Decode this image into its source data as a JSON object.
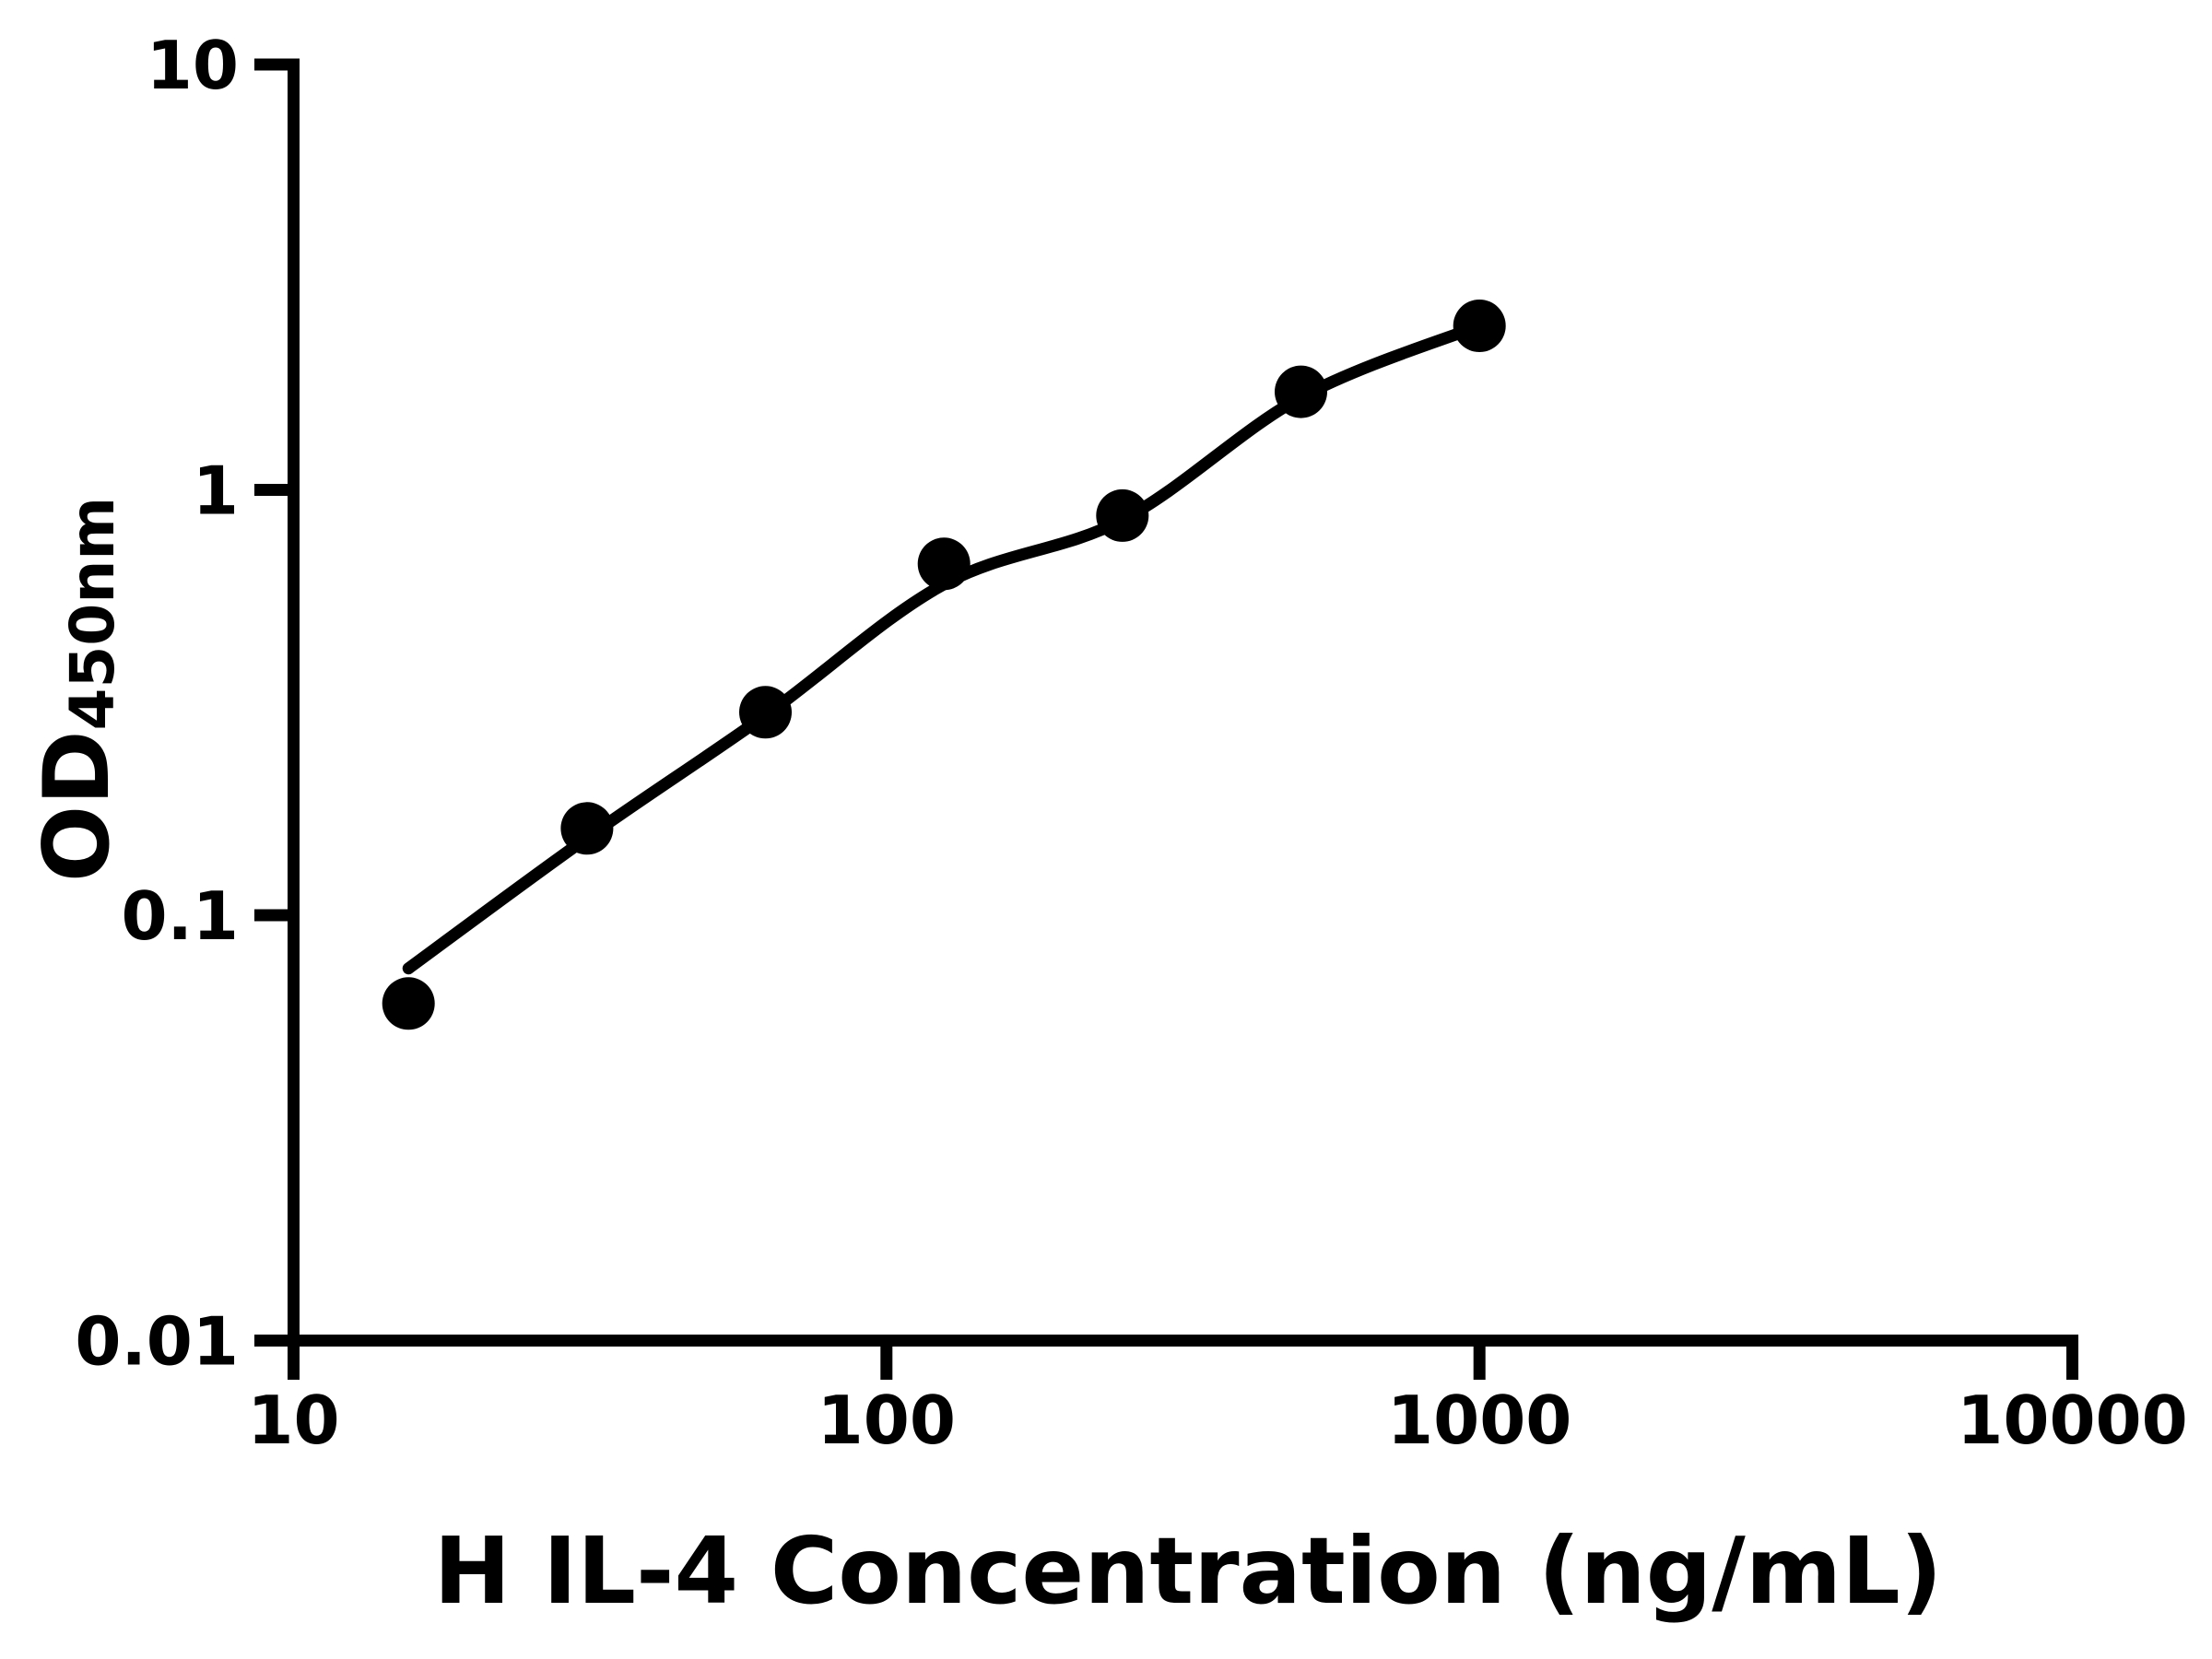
{
  "figure": {
    "background": "#ffffff",
    "foreground": "#000000"
  },
  "chart_data": {
    "type": "scatter",
    "title": "",
    "xlabel": "H IL-4 Concentration (ng/mL)",
    "ylabel_main": "OD",
    "ylabel_sub": "450nm",
    "xscale": "log",
    "yscale": "log",
    "xlim": [
      10,
      10000
    ],
    "ylim": [
      0.01,
      10
    ],
    "x_ticks": [
      10,
      100,
      1000,
      10000
    ],
    "x_tick_labels": [
      "10",
      "100",
      "1000",
      "10000"
    ],
    "y_ticks": [
      10,
      1,
      0.1,
      0.01
    ],
    "y_tick_labels": [
      "10",
      "1",
      "0.1",
      "0.01"
    ],
    "grid": false,
    "legend": "none",
    "marker_color": "#000000",
    "line_color": "#000000",
    "x": [
      15.625,
      31.25,
      62.5,
      125,
      250,
      500,
      1000
    ],
    "y": [
      0.062,
      0.16,
      0.3,
      0.67,
      0.87,
      1.7,
      2.43
    ],
    "fit_curve": {
      "x": [
        15.625,
        31.25,
        62.5,
        125,
        250,
        500,
        1000
      ],
      "y": [
        0.075,
        0.152,
        0.295,
        0.6,
        0.85,
        1.65,
        2.43
      ]
    }
  }
}
